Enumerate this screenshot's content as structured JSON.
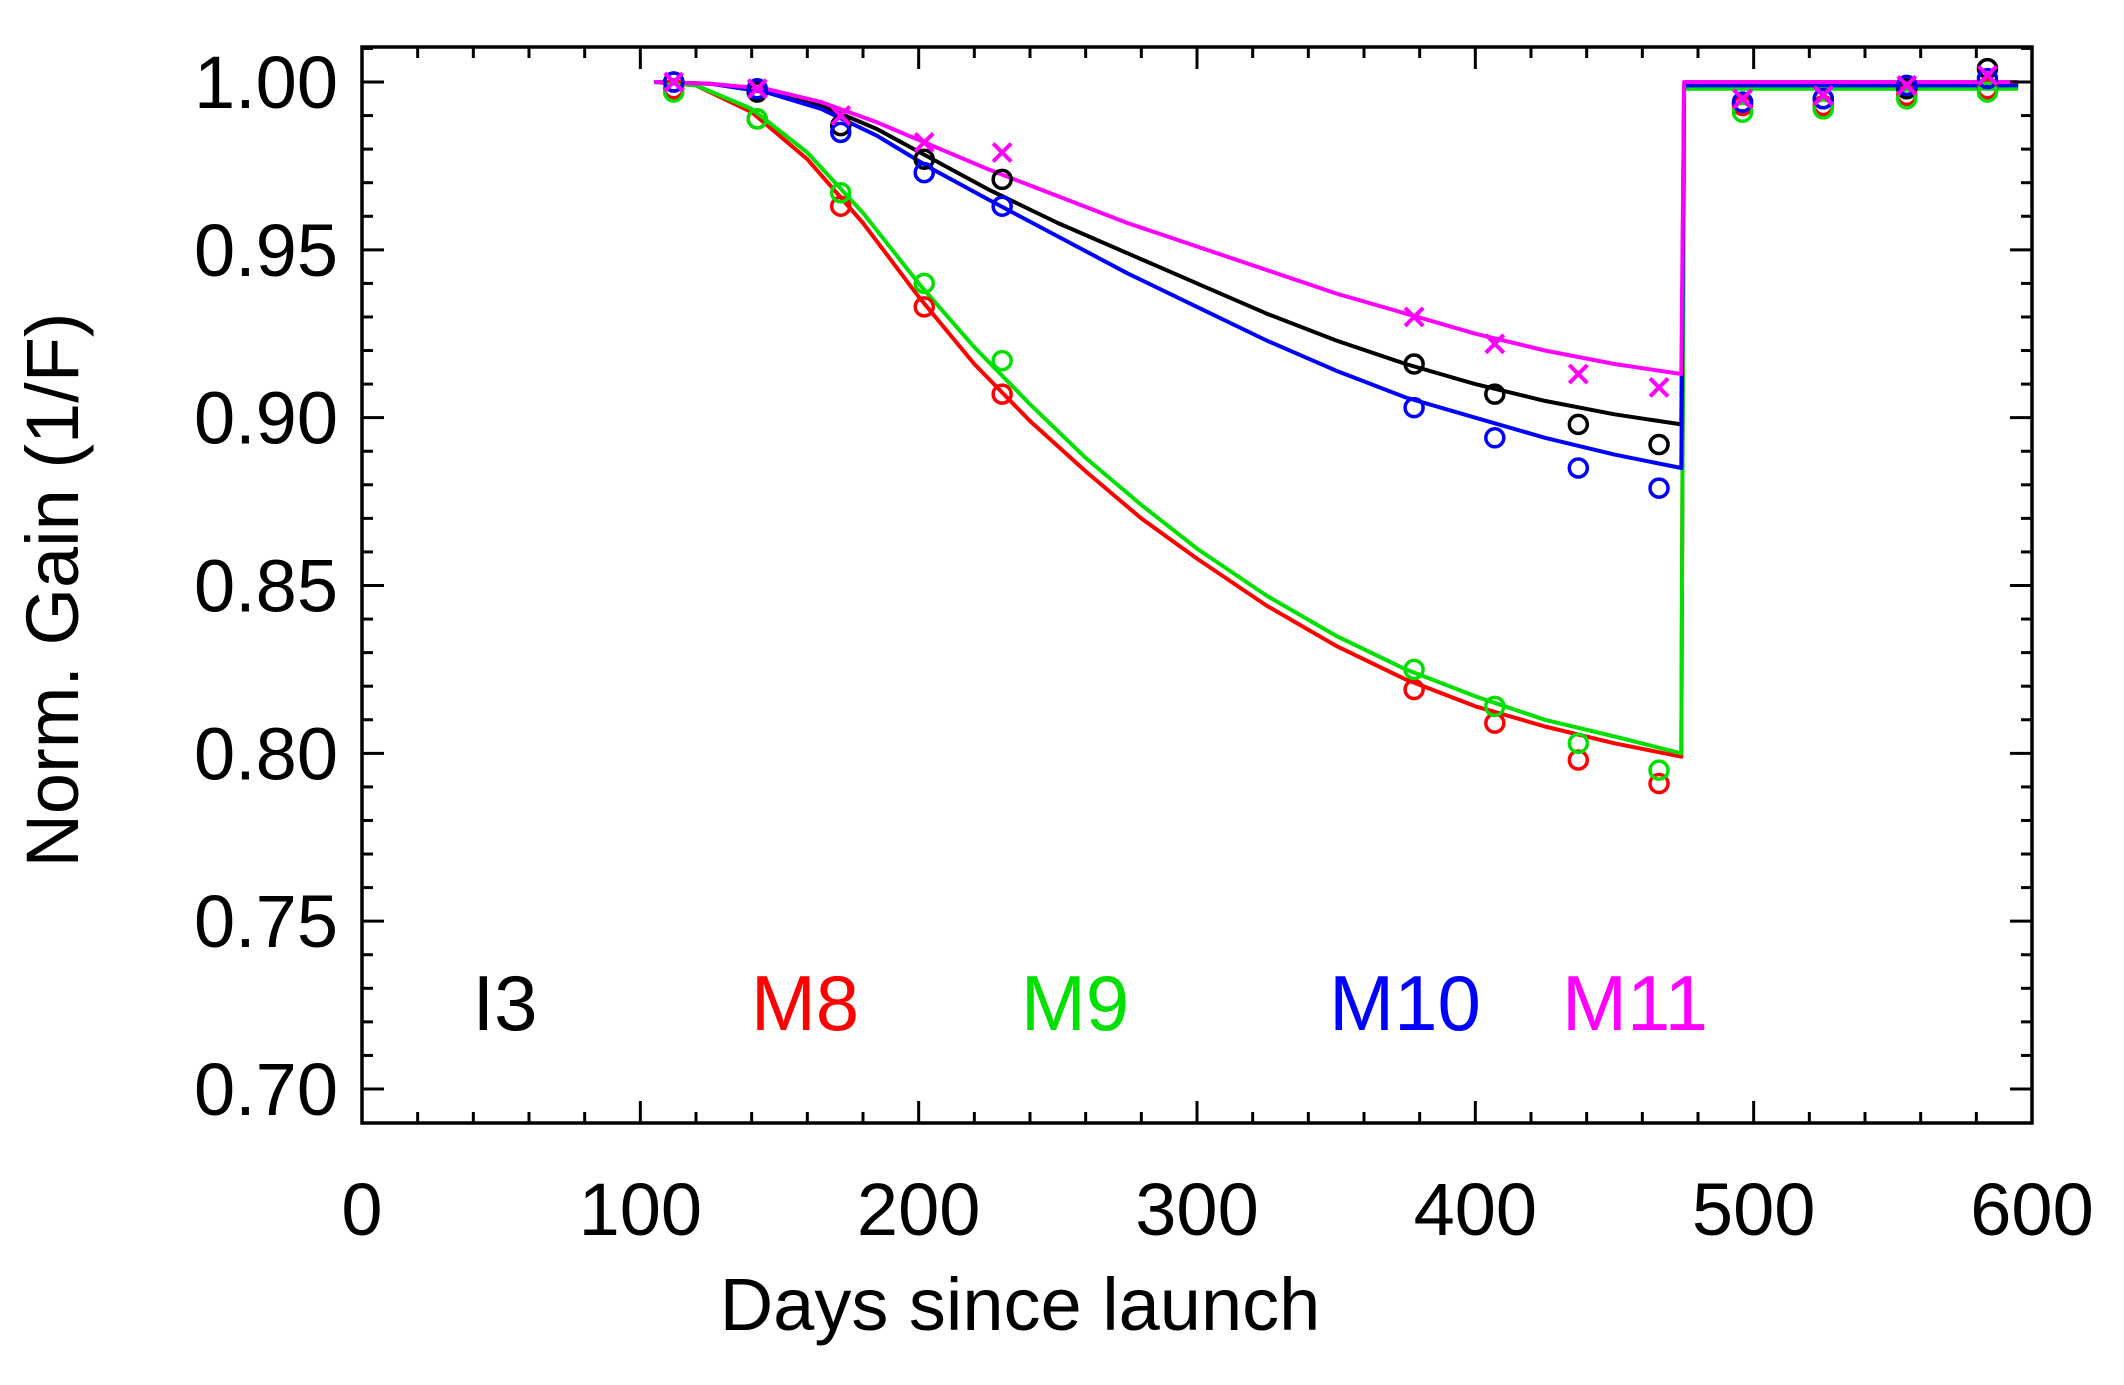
{
  "chart_data": {
    "type": "scatter",
    "title": "",
    "xlabel": "Days since launch",
    "ylabel": "Norm. Gain (1/F)",
    "xlim": [
      0,
      600
    ],
    "ylim": [
      0.7,
      1.01
    ],
    "x_ticks": [
      0,
      100,
      200,
      300,
      400,
      500,
      600
    ],
    "x_tick_labels": [
      "0",
      "100",
      "200",
      "300",
      "400",
      "500",
      "600"
    ],
    "y_ticks": [
      0.7,
      0.75,
      0.8,
      0.85,
      0.9,
      0.95,
      1.0
    ],
    "y_tick_labels": [
      "0.70",
      "0.75",
      "0.80",
      "0.85",
      "0.90",
      "0.95",
      "1.00"
    ],
    "x_minor_step": 20,
    "y_minor_step": 0.01,
    "grid": false,
    "legend_position": "bottom",
    "series": [
      {
        "name": "I3",
        "color": "#000000",
        "marker": "circle",
        "points": [
          [
            112,
            1.0
          ],
          [
            142,
            0.997
          ],
          [
            172,
            0.987
          ],
          [
            202,
            0.977
          ],
          [
            230,
            0.971
          ],
          [
            378,
            0.916
          ],
          [
            407,
            0.907
          ],
          [
            437,
            0.898
          ],
          [
            466,
            0.892
          ],
          [
            496,
            0.994
          ],
          [
            525,
            0.995
          ],
          [
            555,
            0.998
          ],
          [
            584,
            1.004
          ]
        ],
        "fit": [
          [
            105,
            1.0
          ],
          [
            125,
            0.9995
          ],
          [
            145,
            0.9975
          ],
          [
            165,
            0.993
          ],
          [
            185,
            0.986
          ],
          [
            205,
            0.977
          ],
          [
            225,
            0.968
          ],
          [
            250,
            0.958
          ],
          [
            275,
            0.949
          ],
          [
            300,
            0.94
          ],
          [
            325,
            0.931
          ],
          [
            350,
            0.923
          ],
          [
            375,
            0.916
          ],
          [
            400,
            0.91
          ],
          [
            425,
            0.905
          ],
          [
            450,
            0.901
          ],
          [
            474,
            0.898
          ],
          [
            475,
            0.999
          ],
          [
            500,
            0.999
          ],
          [
            550,
            0.999
          ],
          [
            595,
            0.999
          ]
        ]
      },
      {
        "name": "M8",
        "color": "#ff0000",
        "marker": "circle",
        "points": [
          [
            112,
            0.998
          ],
          [
            142,
            0.989
          ],
          [
            172,
            0.963
          ],
          [
            202,
            0.933
          ],
          [
            230,
            0.907
          ],
          [
            378,
            0.819
          ],
          [
            407,
            0.809
          ],
          [
            437,
            0.798
          ],
          [
            466,
            0.791
          ],
          [
            496,
            0.993
          ],
          [
            525,
            0.993
          ],
          [
            555,
            0.996
          ],
          [
            584,
            0.998
          ]
        ],
        "fit": [
          [
            105,
            1.0
          ],
          [
            120,
            0.999
          ],
          [
            140,
            0.991
          ],
          [
            160,
            0.977
          ],
          [
            180,
            0.958
          ],
          [
            200,
            0.936
          ],
          [
            220,
            0.916
          ],
          [
            240,
            0.899
          ],
          [
            260,
            0.884
          ],
          [
            280,
            0.87
          ],
          [
            300,
            0.858
          ],
          [
            325,
            0.844
          ],
          [
            350,
            0.832
          ],
          [
            375,
            0.822
          ],
          [
            400,
            0.814
          ],
          [
            425,
            0.808
          ],
          [
            450,
            0.803
          ],
          [
            474,
            0.799
          ],
          [
            475,
            0.999
          ],
          [
            500,
            0.999
          ],
          [
            550,
            0.999
          ],
          [
            595,
            0.999
          ]
        ]
      },
      {
        "name": "M9",
        "color": "#00e000",
        "marker": "circle",
        "points": [
          [
            112,
            0.997
          ],
          [
            142,
            0.989
          ],
          [
            172,
            0.967
          ],
          [
            202,
            0.94
          ],
          [
            230,
            0.917
          ],
          [
            378,
            0.825
          ],
          [
            407,
            0.814
          ],
          [
            437,
            0.803
          ],
          [
            466,
            0.795
          ],
          [
            496,
            0.991
          ],
          [
            525,
            0.992
          ],
          [
            555,
            0.995
          ],
          [
            584,
            0.997
          ]
        ],
        "fit": [
          [
            105,
            1.0
          ],
          [
            120,
            0.999
          ],
          [
            140,
            0.992
          ],
          [
            160,
            0.979
          ],
          [
            180,
            0.961
          ],
          [
            200,
            0.94
          ],
          [
            220,
            0.921
          ],
          [
            240,
            0.904
          ],
          [
            260,
            0.888
          ],
          [
            280,
            0.874
          ],
          [
            300,
            0.861
          ],
          [
            325,
            0.847
          ],
          [
            350,
            0.835
          ],
          [
            375,
            0.825
          ],
          [
            400,
            0.817
          ],
          [
            425,
            0.81
          ],
          [
            450,
            0.805
          ],
          [
            474,
            0.8
          ],
          [
            475,
            0.998
          ],
          [
            500,
            0.998
          ],
          [
            550,
            0.998
          ],
          [
            595,
            0.998
          ]
        ]
      },
      {
        "name": "M10",
        "color": "#0000ff",
        "marker": "circle",
        "points": [
          [
            112,
            1.0
          ],
          [
            142,
            0.998
          ],
          [
            172,
            0.985
          ],
          [
            202,
            0.973
          ],
          [
            230,
            0.963
          ],
          [
            378,
            0.903
          ],
          [
            407,
            0.894
          ],
          [
            437,
            0.885
          ],
          [
            466,
            0.879
          ],
          [
            496,
            0.994
          ],
          [
            525,
            0.995
          ],
          [
            555,
            0.999
          ],
          [
            584,
            1.001
          ]
        ],
        "fit": [
          [
            105,
            1.0
          ],
          [
            125,
            0.9995
          ],
          [
            145,
            0.997
          ],
          [
            165,
            0.992
          ],
          [
            185,
            0.984
          ],
          [
            205,
            0.974
          ],
          [
            225,
            0.965
          ],
          [
            250,
            0.954
          ],
          [
            275,
            0.943
          ],
          [
            300,
            0.933
          ],
          [
            325,
            0.923
          ],
          [
            350,
            0.914
          ],
          [
            375,
            0.906
          ],
          [
            400,
            0.9
          ],
          [
            425,
            0.894
          ],
          [
            450,
            0.889
          ],
          [
            474,
            0.885
          ],
          [
            475,
            0.999
          ],
          [
            500,
            0.999
          ],
          [
            550,
            0.999
          ],
          [
            595,
            0.999
          ]
        ]
      },
      {
        "name": "M11",
        "color": "#ff00ff",
        "marker": "x",
        "points": [
          [
            112,
            1.0
          ],
          [
            142,
            0.998
          ],
          [
            172,
            0.99
          ],
          [
            202,
            0.982
          ],
          [
            230,
            0.979
          ],
          [
            378,
            0.93
          ],
          [
            407,
            0.922
          ],
          [
            437,
            0.913
          ],
          [
            466,
            0.909
          ],
          [
            496,
            0.995
          ],
          [
            525,
            0.996
          ],
          [
            555,
            0.999
          ],
          [
            584,
            1.002
          ]
        ],
        "fit": [
          [
            105,
            1.0
          ],
          [
            125,
            0.9995
          ],
          [
            145,
            0.998
          ],
          [
            165,
            0.994
          ],
          [
            185,
            0.988
          ],
          [
            205,
            0.981
          ],
          [
            225,
            0.974
          ],
          [
            250,
            0.966
          ],
          [
            275,
            0.958
          ],
          [
            300,
            0.951
          ],
          [
            325,
            0.944
          ],
          [
            350,
            0.937
          ],
          [
            375,
            0.931
          ],
          [
            400,
            0.925
          ],
          [
            425,
            0.92
          ],
          [
            450,
            0.916
          ],
          [
            474,
            0.913
          ],
          [
            475,
            1.0
          ],
          [
            500,
            1.0
          ],
          [
            550,
            1.0
          ],
          [
            595,
            1.0
          ]
        ]
      }
    ]
  }
}
